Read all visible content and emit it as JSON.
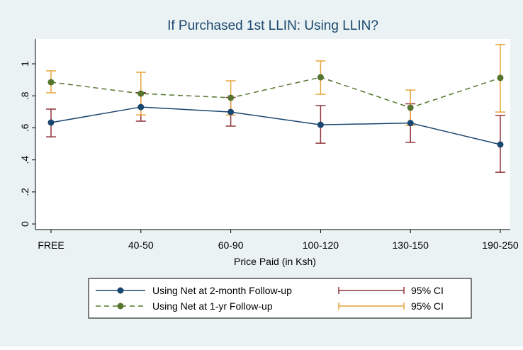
{
  "chart_data": {
    "type": "line",
    "title": "If Purchased 1st LLIN: Using LLIN?",
    "x_label": "Price Paid (in Ksh)",
    "categories": [
      "FREE",
      "40-50",
      "60-90",
      "100-120",
      "130-150",
      "190-250"
    ],
    "ylim": [
      -0.035,
      1.155
    ],
    "yticks": [
      0,
      {
        "value": 0.2,
        "label": ".2"
      },
      {
        "value": 0.4,
        "label": ".4"
      },
      {
        "value": 0.6,
        "label": ".6"
      },
      {
        "value": 0.8,
        "label": ".8"
      },
      1
    ],
    "series": [
      {
        "name": "Using Net at 2-month Follow-up",
        "color": "#1a476f",
        "dashed": false,
        "values": [
          0.633,
          0.73,
          0.699,
          0.619,
          0.63,
          0.496
        ],
        "ci_name": "95% CI",
        "ci_color": "#90353b",
        "ci_low": [
          0.544,
          0.642,
          0.611,
          0.504,
          0.509,
          0.323
        ],
        "ci_high": [
          0.717,
          0.82,
          0.79,
          0.739,
          0.75,
          0.677
        ]
      },
      {
        "name": "Using Net at 1-yr Follow-up",
        "color": "#55752f",
        "dashed": true,
        "values": [
          0.885,
          0.814,
          0.788,
          0.916,
          0.726,
          0.912
        ],
        "ci_name": "95% CI",
        "ci_color": "#e8a33c",
        "ci_low": [
          0.819,
          0.681,
          0.68,
          0.81,
          0.615,
          0.699
        ],
        "ci_high": [
          0.956,
          0.947,
          0.894,
          1.018,
          0.836,
          1.12
        ]
      }
    ]
  }
}
